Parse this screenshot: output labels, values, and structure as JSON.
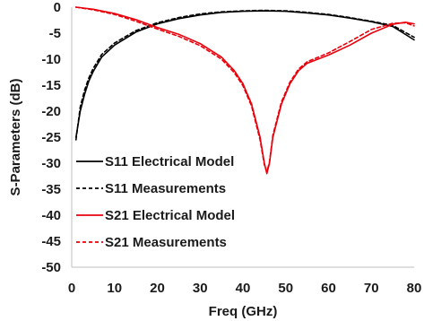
{
  "chart_data": {
    "type": "line",
    "xlabel": "Freq (GHz)",
    "ylabel": "S-Parameters (dB)",
    "xlim": [
      0,
      80
    ],
    "ylim": [
      -50,
      0
    ],
    "xticks": [
      0,
      10,
      20,
      30,
      40,
      50,
      60,
      70,
      80
    ],
    "yticks": [
      0,
      -5,
      -10,
      -15,
      -20,
      -25,
      -30,
      -35,
      -40,
      -45,
      -50
    ],
    "grid": false,
    "legend_position": "bottom-left",
    "series": [
      {
        "name": "S11 Electrical Model",
        "color": "#000000",
        "dash": "solid",
        "points": [
          [
            1,
            -25
          ],
          [
            2,
            -20
          ],
          [
            3,
            -16.8
          ],
          [
            4,
            -14.2
          ],
          [
            5,
            -12.4
          ],
          [
            7,
            -9.6
          ],
          [
            10,
            -7.3
          ],
          [
            15,
            -4.8
          ],
          [
            20,
            -3.2
          ],
          [
            25,
            -2.2
          ],
          [
            30,
            -1.5
          ],
          [
            35,
            -1.0
          ],
          [
            40,
            -0.8
          ],
          [
            45,
            -0.7
          ],
          [
            50,
            -0.8
          ],
          [
            55,
            -1.1
          ],
          [
            60,
            -1.5
          ],
          [
            65,
            -2.1
          ],
          [
            70,
            -2.8
          ],
          [
            75,
            -3.7
          ],
          [
            80,
            -6.3
          ]
        ]
      },
      {
        "name": "S11 Measurements",
        "color": "#000000",
        "dash": "dashed",
        "points": [
          [
            1,
            -25.5
          ],
          [
            2,
            -19.2
          ],
          [
            3,
            -16.0
          ],
          [
            4,
            -13.6
          ],
          [
            5,
            -11.8
          ],
          [
            7,
            -9.1
          ],
          [
            10,
            -6.9
          ],
          [
            15,
            -4.5
          ],
          [
            20,
            -3.0
          ],
          [
            25,
            -2.0
          ],
          [
            30,
            -1.3
          ],
          [
            35,
            -0.9
          ],
          [
            40,
            -0.7
          ],
          [
            45,
            -0.6
          ],
          [
            50,
            -0.7
          ],
          [
            55,
            -1.0
          ],
          [
            60,
            -1.4
          ],
          [
            65,
            -2.0
          ],
          [
            70,
            -2.7
          ],
          [
            75,
            -3.5
          ],
          [
            80,
            -5.8
          ]
        ]
      },
      {
        "name": "S21 Electrical Model",
        "color": "#e8000b",
        "dash": "solid",
        "points": [
          [
            1,
            0
          ],
          [
            5,
            -0.4
          ],
          [
            10,
            -1.2
          ],
          [
            15,
            -2.4
          ],
          [
            20,
            -3.9
          ],
          [
            25,
            -5.2
          ],
          [
            30,
            -7.0
          ],
          [
            35,
            -9.6
          ],
          [
            38,
            -12.2
          ],
          [
            40,
            -14.7
          ],
          [
            42,
            -18.6
          ],
          [
            44,
            -25.0
          ],
          [
            45,
            -30.0
          ],
          [
            45.6,
            -32.0
          ],
          [
            46.2,
            -30.0
          ],
          [
            47,
            -25.0
          ],
          [
            49,
            -18.6
          ],
          [
            51,
            -14.7
          ],
          [
            53,
            -12.2
          ],
          [
            55,
            -10.8
          ],
          [
            60,
            -9.2
          ],
          [
            65,
            -7.3
          ],
          [
            70,
            -5.0
          ],
          [
            75,
            -3.3
          ],
          [
            78,
            -2.9
          ],
          [
            80,
            -3.2
          ]
        ]
      },
      {
        "name": "S21 Measurements",
        "color": "#e8000b",
        "dash": "dashed",
        "points": [
          [
            1,
            0
          ],
          [
            5,
            -0.5
          ],
          [
            10,
            -1.4
          ],
          [
            15,
            -2.7
          ],
          [
            20,
            -4.2
          ],
          [
            25,
            -5.6
          ],
          [
            30,
            -7.4
          ],
          [
            35,
            -10.0
          ],
          [
            38,
            -12.6
          ],
          [
            40,
            -15.1
          ],
          [
            42,
            -19.0
          ],
          [
            44,
            -25.5
          ],
          [
            45,
            -30.3
          ],
          [
            45.6,
            -31.6
          ],
          [
            46.2,
            -29.8
          ],
          [
            47,
            -24.6
          ],
          [
            49,
            -18.2
          ],
          [
            51,
            -14.4
          ],
          [
            53,
            -11.9
          ],
          [
            55,
            -10.5
          ],
          [
            60,
            -8.8
          ],
          [
            65,
            -6.6
          ],
          [
            70,
            -4.3
          ],
          [
            75,
            -3.1
          ],
          [
            78,
            -3.0
          ],
          [
            80,
            -3.6
          ]
        ]
      }
    ]
  }
}
